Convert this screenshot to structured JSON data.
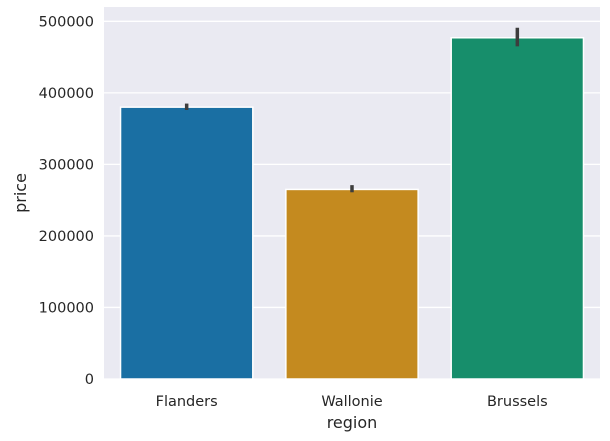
{
  "chart_data": {
    "type": "bar",
    "title": "",
    "xlabel": "region",
    "ylabel": "price",
    "categories": [
      "Flanders",
      "Wallonie",
      "Brussels"
    ],
    "values": [
      380000,
      265000,
      477000
    ],
    "error_bars": [
      [
        376000,
        385000
      ],
      [
        261000,
        271000
      ],
      [
        465000,
        491000
      ]
    ],
    "ylim": [
      0,
      520000
    ],
    "yticks": [
      0,
      100000,
      200000,
      300000,
      400000,
      500000
    ],
    "ytick_labels": [
      "0",
      "100000",
      "200000",
      "300000",
      "400000",
      "500000"
    ],
    "bar_colors": [
      "#1a6fa3",
      "#c48a1f",
      "#178e6b"
    ],
    "background_color": "#eaeaf2",
    "grid": true,
    "grid_axis": "y"
  }
}
